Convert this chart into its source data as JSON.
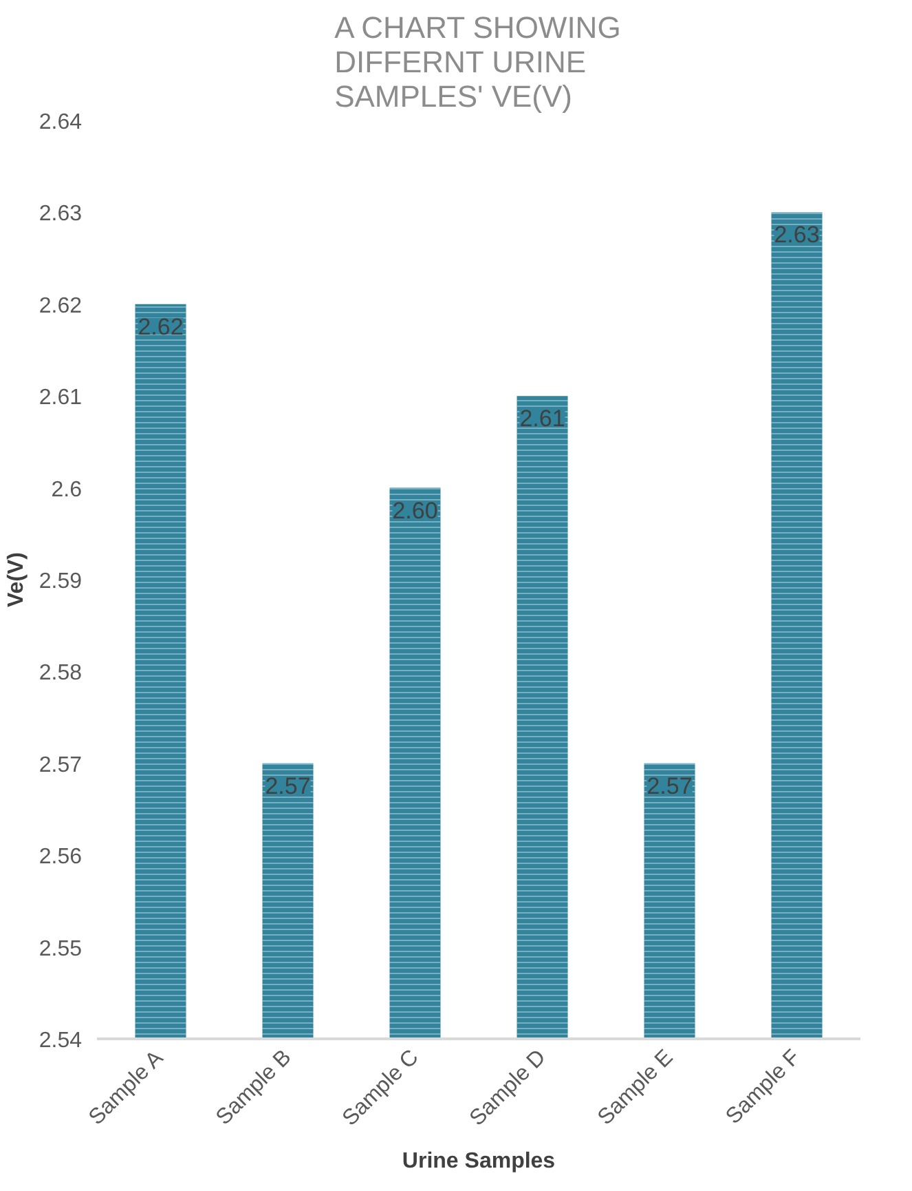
{
  "chart_data": {
    "type": "bar",
    "title": "A CHART SHOWING DIFFERNT URINE SAMPLES' VE(V)",
    "xlabel": "Urine Samples",
    "ylabel": "Ve(V)",
    "categories": [
      "Sample A",
      "Sample B",
      "Sample C",
      "Sample D",
      "Sample E",
      "Sample F"
    ],
    "values": [
      2.62,
      2.57,
      2.6,
      2.61,
      2.57,
      2.63
    ],
    "value_labels": [
      "2.62",
      "2.57",
      "2.60",
      "2.61",
      "2.57",
      "2.63"
    ],
    "color": "#31849b",
    "ylim": [
      2.54,
      2.64
    ],
    "yticks": [
      2.54,
      2.55,
      2.56,
      2.57,
      2.58,
      2.59,
      2.6,
      2.61,
      2.62,
      2.63,
      2.64
    ],
    "grid": false
  }
}
